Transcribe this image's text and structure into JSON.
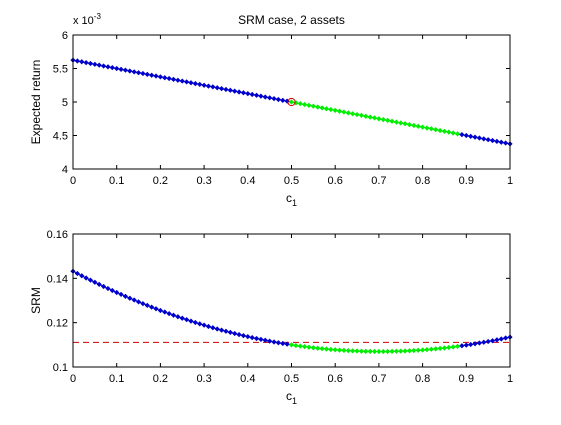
{
  "chart_data": [
    {
      "type": "line",
      "title": "SRM case, 2 assets",
      "xlabel_base": "c",
      "xlabel_sub": "1",
      "ylabel": "Expected return",
      "y_multiplier": {
        "base": "x 10",
        "exp": "-3"
      },
      "xlim": [
        0,
        1
      ],
      "ylim": [
        4,
        6
      ],
      "x_ticks": [
        0,
        0.1,
        0.2,
        0.3,
        0.4,
        0.5,
        0.6,
        0.7,
        0.8,
        0.9,
        1
      ],
      "x_tick_labels": [
        "0",
        "0.1",
        "0.2",
        "0.3",
        "0.4",
        "0.5",
        "0.6",
        "0.7",
        "0.8",
        "0.9",
        "1"
      ],
      "y_ticks": [
        4,
        4.5,
        5,
        5.5,
        6
      ],
      "y_tick_labels": [
        "4",
        "4.5",
        "5",
        "5.5",
        "6"
      ],
      "grid": false,
      "curve": {
        "kind": "linear",
        "y_at_0": 5.625,
        "y_at_1": 4.375,
        "step": 0.01
      },
      "highlight_range": [
        0.5,
        0.88
      ],
      "marker_point": {
        "x": 0.5,
        "y": 5.0
      },
      "colors": {
        "base": "#0000cc",
        "highlight": "#00ee00",
        "marker": "#cc0000"
      }
    },
    {
      "type": "line",
      "xlabel_base": "c",
      "xlabel_sub": "1",
      "ylabel": "SRM",
      "xlim": [
        0,
        1
      ],
      "ylim": [
        0.1,
        0.16
      ],
      "x_ticks": [
        0,
        0.1,
        0.2,
        0.3,
        0.4,
        0.5,
        0.6,
        0.7,
        0.8,
        0.9,
        1
      ],
      "x_tick_labels": [
        "0",
        "0.1",
        "0.2",
        "0.3",
        "0.4",
        "0.5",
        "0.6",
        "0.7",
        "0.8",
        "0.9",
        "1"
      ],
      "y_ticks": [
        0.1,
        0.12,
        0.14,
        0.16
      ],
      "y_tick_labels": [
        "0.1",
        "0.12",
        "0.14",
        "0.16"
      ],
      "grid": false,
      "curve": {
        "kind": "quadratic",
        "a": 0.0734,
        "b": -0.1031,
        "c": 0.1432,
        "step": 0.01
      },
      "highlight_range": [
        0.5,
        0.88
      ],
      "reference_line": {
        "y": 0.1111,
        "style": "dashed"
      },
      "colors": {
        "base": "#0000cc",
        "highlight": "#00ee00",
        "reference": "#cc0000"
      }
    }
  ]
}
